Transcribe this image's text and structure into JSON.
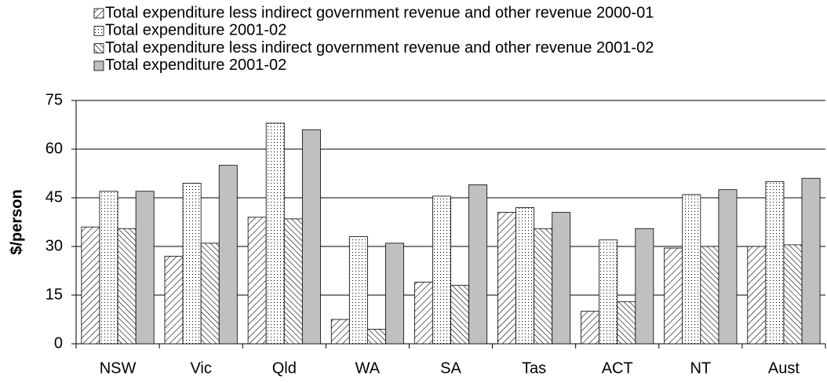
{
  "chart_data": {
    "type": "bar",
    "y_label": "$/person",
    "categories": [
      "NSW",
      "Vic",
      "Qld",
      "WA",
      "SA",
      "Tas",
      "ACT",
      "NT",
      "Aust"
    ],
    "series": [
      {
        "name": "Total expenditure less indirect government revenue and other revenue 2000-01",
        "color": "#000000",
        "pattern": "diagonal",
        "values": [
          36,
          27,
          39,
          7.5,
          19,
          40.5,
          10,
          29.5,
          30
        ]
      },
      {
        "name": "Total expenditure 2001-02",
        "color": "#000000",
        "pattern": "dots",
        "values": [
          47,
          49.5,
          68,
          33,
          45.5,
          42,
          32,
          46,
          50
        ]
      },
      {
        "name": "Total expenditure less indirect government revenue and other revenue 2001-02",
        "color": "#000000",
        "pattern": "back-diagonal",
        "values": [
          35.5,
          31,
          38.5,
          4.5,
          18,
          35.5,
          13,
          30,
          30.5
        ]
      },
      {
        "name": "Total expenditure 2001-02",
        "color": "#c0c0c0",
        "pattern": "solid",
        "values": [
          47,
          55,
          66,
          31,
          49,
          40.5,
          35.5,
          47.5,
          51
        ]
      }
    ],
    "ylim": [
      0,
      75
    ],
    "yticks": [
      0,
      15,
      30,
      45,
      60,
      75
    ],
    "grid": true,
    "legend": "top-left"
  }
}
